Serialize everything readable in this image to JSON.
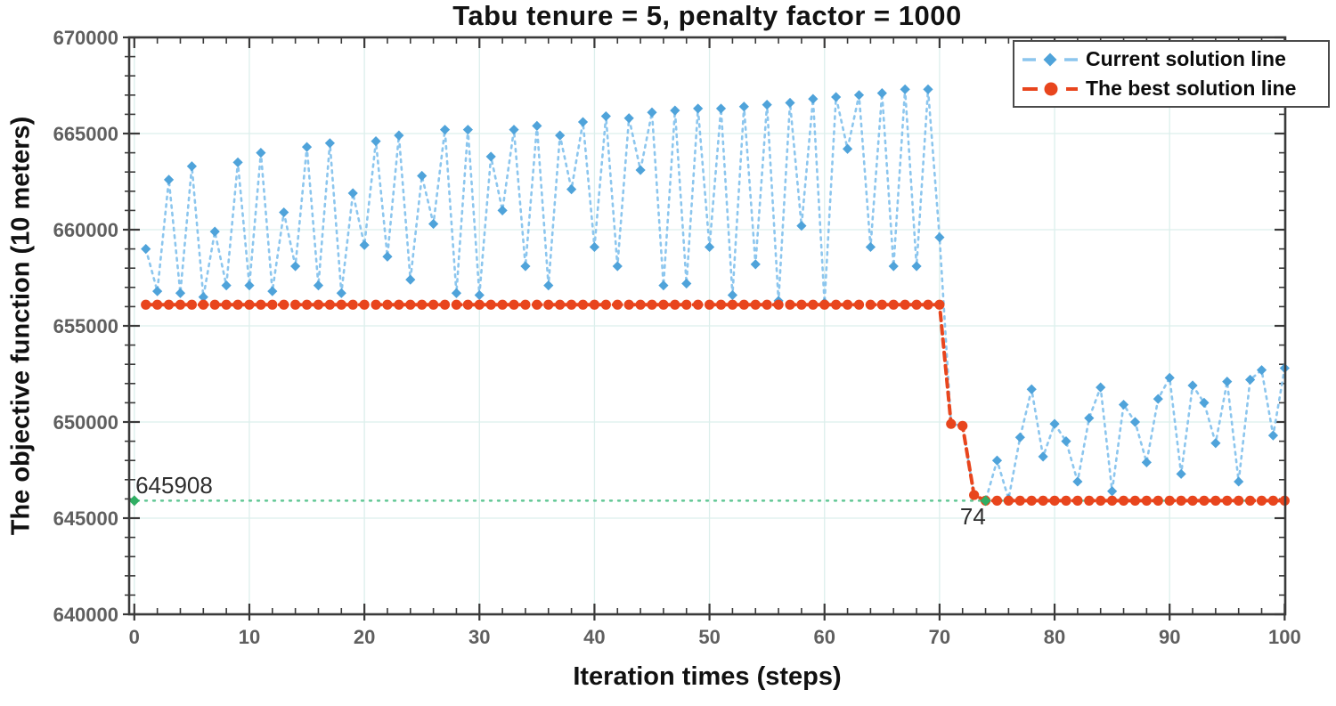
{
  "chart_data": {
    "type": "line",
    "title": "Tabu tenure = 5, penalty factor = 1000",
    "xlabel": "Iteration times (steps)",
    "ylabel": "The objective function (10 meters)",
    "xlim": [
      -0.45,
      100.05
    ],
    "ylim": [
      640000,
      670000
    ],
    "xticks": [
      0,
      10,
      20,
      30,
      40,
      50,
      60,
      70,
      80,
      90,
      100
    ],
    "yticks": [
      640000,
      645000,
      650000,
      655000,
      660000,
      665000,
      670000
    ],
    "x_minor_step": 2,
    "y_minor_step": 1000,
    "grid": true,
    "grid_color": "#dcefec",
    "spine_color": "#3a3a3a",
    "tick_label_color": "#5f5f5f",
    "legend_position": "top-right",
    "series": [
      {
        "name": "Current solution line",
        "marker": "diamond",
        "line_style": "dashed",
        "line_color": "#8cc6ee",
        "marker_color": "#4fa3da",
        "x_start": 1,
        "values": [
          659000,
          656800,
          662600,
          656700,
          663300,
          656500,
          659900,
          657100,
          663500,
          657100,
          664000,
          656800,
          660900,
          658100,
          664300,
          657100,
          664500,
          656700,
          661900,
          659200,
          664600,
          658600,
          664900,
          657400,
          662800,
          660300,
          665200,
          656700,
          665200,
          656600,
          663800,
          661000,
          665200,
          658100,
          665400,
          657100,
          664900,
          662100,
          665600,
          659100,
          665900,
          658100,
          665800,
          663100,
          666100,
          657100,
          666200,
          657200,
          666300,
          659100,
          666300,
          656600,
          666400,
          658200,
          666500,
          656300,
          666600,
          660200,
          666800,
          656200,
          666900,
          664200,
          667000,
          659100,
          667100,
          658100,
          667300,
          658100,
          667300,
          659600,
          649900,
          649800,
          646200,
          645908,
          648000,
          646000,
          649200,
          651700,
          648200,
          649900,
          649000,
          646900,
          650200,
          651800,
          646400,
          650900,
          650000,
          647900,
          651200,
          652300,
          647300,
          651900,
          651000,
          648900,
          652100,
          646900,
          652200,
          652700,
          649300,
          652800
        ]
      },
      {
        "name": "The best solution line",
        "marker": "circle",
        "line_style": "dashed",
        "line_color": "#e8451d",
        "marker_color": "#e8451d",
        "x_start": 1,
        "values": [
          656100,
          656100,
          656100,
          656100,
          656100,
          656100,
          656100,
          656100,
          656100,
          656100,
          656100,
          656100,
          656100,
          656100,
          656100,
          656100,
          656100,
          656100,
          656100,
          656100,
          656100,
          656100,
          656100,
          656100,
          656100,
          656100,
          656100,
          656100,
          656100,
          656100,
          656100,
          656100,
          656100,
          656100,
          656100,
          656100,
          656100,
          656100,
          656100,
          656100,
          656100,
          656100,
          656100,
          656100,
          656100,
          656100,
          656100,
          656100,
          656100,
          656100,
          656100,
          656100,
          656100,
          656100,
          656100,
          656100,
          656100,
          656100,
          656100,
          656100,
          656100,
          656100,
          656100,
          656100,
          656100,
          656100,
          656100,
          656100,
          656100,
          656100,
          649900,
          649800,
          646200,
          645908,
          645908,
          645908,
          645908,
          645908,
          645908,
          645908,
          645908,
          645908,
          645908,
          645908,
          645908,
          645908,
          645908,
          645908,
          645908,
          645908,
          645908,
          645908,
          645908,
          645908,
          645908,
          645908,
          645908,
          645908,
          645908,
          645908
        ]
      }
    ],
    "reference_line": {
      "name": "best-value-reference",
      "y": 645908,
      "line_color": "#62c795",
      "line_style": "dotted",
      "marker": "diamond",
      "marker_color": "#2fae63",
      "marker_points": [
        [
          0,
          645908
        ],
        [
          74,
          645908
        ]
      ]
    },
    "annotations": [
      {
        "text": "645908",
        "x": 0.1,
        "y": 646200,
        "align": "left"
      },
      {
        "text": "74",
        "x": 72.9,
        "y": 644600,
        "align": "center"
      }
    ]
  },
  "legend": {
    "items": [
      {
        "label": "Current solution line"
      },
      {
        "label": "The best solution line"
      }
    ]
  }
}
